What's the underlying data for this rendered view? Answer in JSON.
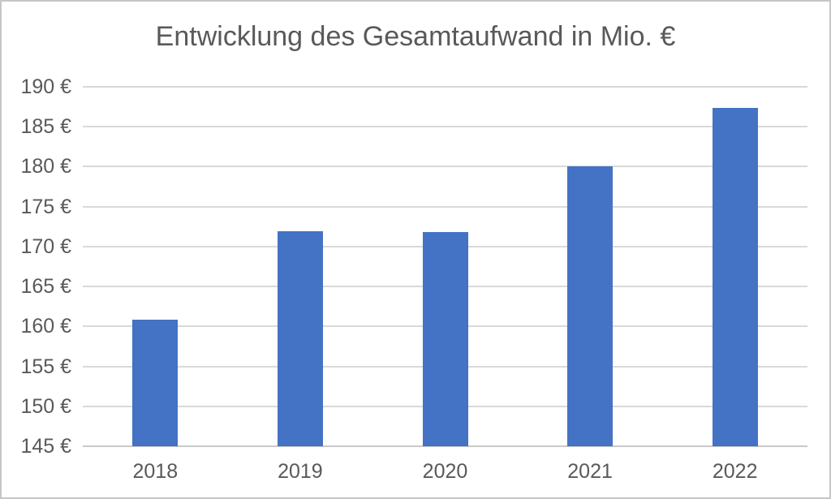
{
  "chart_data": {
    "type": "bar",
    "title": "Entwicklung des Gesamtaufwand in Mio. €",
    "categories": [
      "2018",
      "2019",
      "2020",
      "2021",
      "2022"
    ],
    "values": [
      160.8,
      171.9,
      171.8,
      180.0,
      187.4
    ],
    "series_name": "Gesamtaufwand in Mio. €",
    "xlabel": "",
    "ylabel": "",
    "ylim": [
      145,
      190
    ],
    "ytick_step": 5,
    "ytick_suffix": " €",
    "grid": true,
    "legend": false,
    "style": {
      "bar_color": "#4472C4",
      "text_color": "#595959",
      "gridline_color": "#d9d9d9",
      "axis_line_color": "#c9c9c9",
      "frame_border_color": "#c6c6c6",
      "background_color": "#ffffff"
    }
  }
}
